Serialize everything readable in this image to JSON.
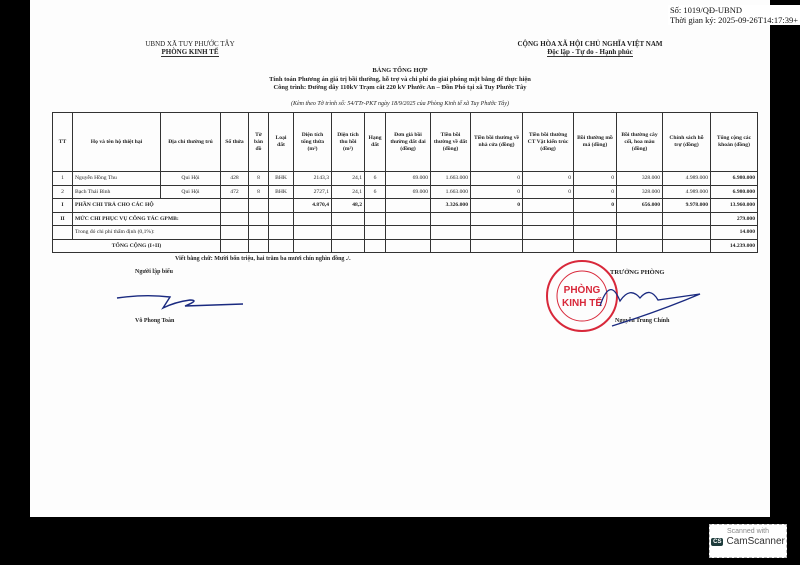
{
  "signature_info": {
    "so": "Số: 1019/QĐ-UBND",
    "time": "Thời gian ký: 2025-09-26T14:17:39+"
  },
  "left_header": {
    "line1": "UBND XÃ TUY PHƯỚC TÂY",
    "line2": "PHÒNG KINH TẾ"
  },
  "right_header": {
    "line1": "CỘNG HÒA XÃ HỘI CHỦ NGHĨA VIỆT NAM",
    "line2": "Độc lập - Tự do - Hạnh phúc"
  },
  "title": {
    "main": "BẢNG TỔNG HỢP",
    "sub1": "Tính toán Phương án giá trị bồi thường, hỗ trợ và chi phí do giải phóng mặt bằng để thực hiện",
    "sub2": "Công trình: Đường dây 110kV Trạm cắt 220 kV Phước An – Đồn Phó tại xã Tuy Phước Tây",
    "note": "(Kèm theo Tờ trình số: 54/TTr-PKT ngày 18/9/2025 của Phòng Kinh tế xã Tuy Phước Tây)"
  },
  "table": {
    "headers": [
      "TT",
      "Họ và tên hộ thiệt hại",
      "Địa chỉ thường trú",
      "Số thửa",
      "Tờ bản đồ",
      "Loại đất",
      "Diện tích tổng thửa (m²)",
      "Diện tích thu hồi (m²)",
      "Hạng đất",
      "Đơn giá bồi thường đất đai (đồng)",
      "Tiền bồi thường về đất (đồng)",
      "Tiền bồi thường về nhà cửa (đồng)",
      "Tiền bồi thường CT Vật kiến trúc (đồng)",
      "Bồi thường mồ mả (đồng)",
      "Bồi thường cây cối, hoa màu (đồng)",
      "Chính sách hỗ trợ (đồng)",
      "Tổng cộng các khoản (đồng)"
    ],
    "rows": [
      [
        "1",
        "Nguyễn Hồng Thu",
        "Qui Hội",
        "428",
        "8",
        "BHK",
        "2143,3",
        "24,1",
        "6",
        "69.000",
        "1.663.000",
        "0",
        "0",
        "0",
        "328.000",
        "4.989.000",
        "6.980.000"
      ],
      [
        "2",
        "Bạch Thái Bình",
        "Qui Hội",
        "472",
        "8",
        "BHK",
        "2727,1",
        "24,1",
        "6",
        "69.000",
        "1.663.000",
        "0",
        "0",
        "0",
        "328.000",
        "4.989.000",
        "6.980.000"
      ]
    ],
    "section_I": {
      "tt": "I",
      "label": "PHẦN CHI TRẢ CHO CÁC HỘ",
      "dt_tong": "4.870,4",
      "dt_thu_hoi": "48,2",
      "tien_dat": "3.326.000",
      "nha": "0",
      "mo_ma": "0",
      "cay": "656.000",
      "chinh_sach": "9.978.000",
      "tong": "13.960.000"
    },
    "section_II": {
      "tt": "II",
      "label": "MỨC CHI PHỤC VỤ CÔNG TÁC GPMB:",
      "tong": "279.000"
    },
    "tham_dinh": {
      "label": "Trong đó chi phí thẩm định (0,1%):",
      "tong": "14.000"
    },
    "total": {
      "label": "TỔNG CỘNG (I+II)",
      "tong": "14.239.000"
    }
  },
  "in_words": "Viết bằng chữ: Mười bốn triệu, hai trăm ba mươi chín nghìn đồng ./.",
  "preparer": {
    "title": "Người lập biểu",
    "name": "Võ Phong Toàn"
  },
  "head": {
    "title": "TRƯỞNG PHÒNG",
    "name": "Nguyễn Trung Chính"
  },
  "stamp": {
    "center": "PHÒNG KINH TẾ",
    "ring": "CỘNG HÒA X.H.C.N VIỆT NAM * X.TUY PHƯỚC TÂY",
    "color": "#d8283a"
  },
  "camscanner": {
    "line1": "Scanned with",
    "line2": "CamScanner"
  }
}
